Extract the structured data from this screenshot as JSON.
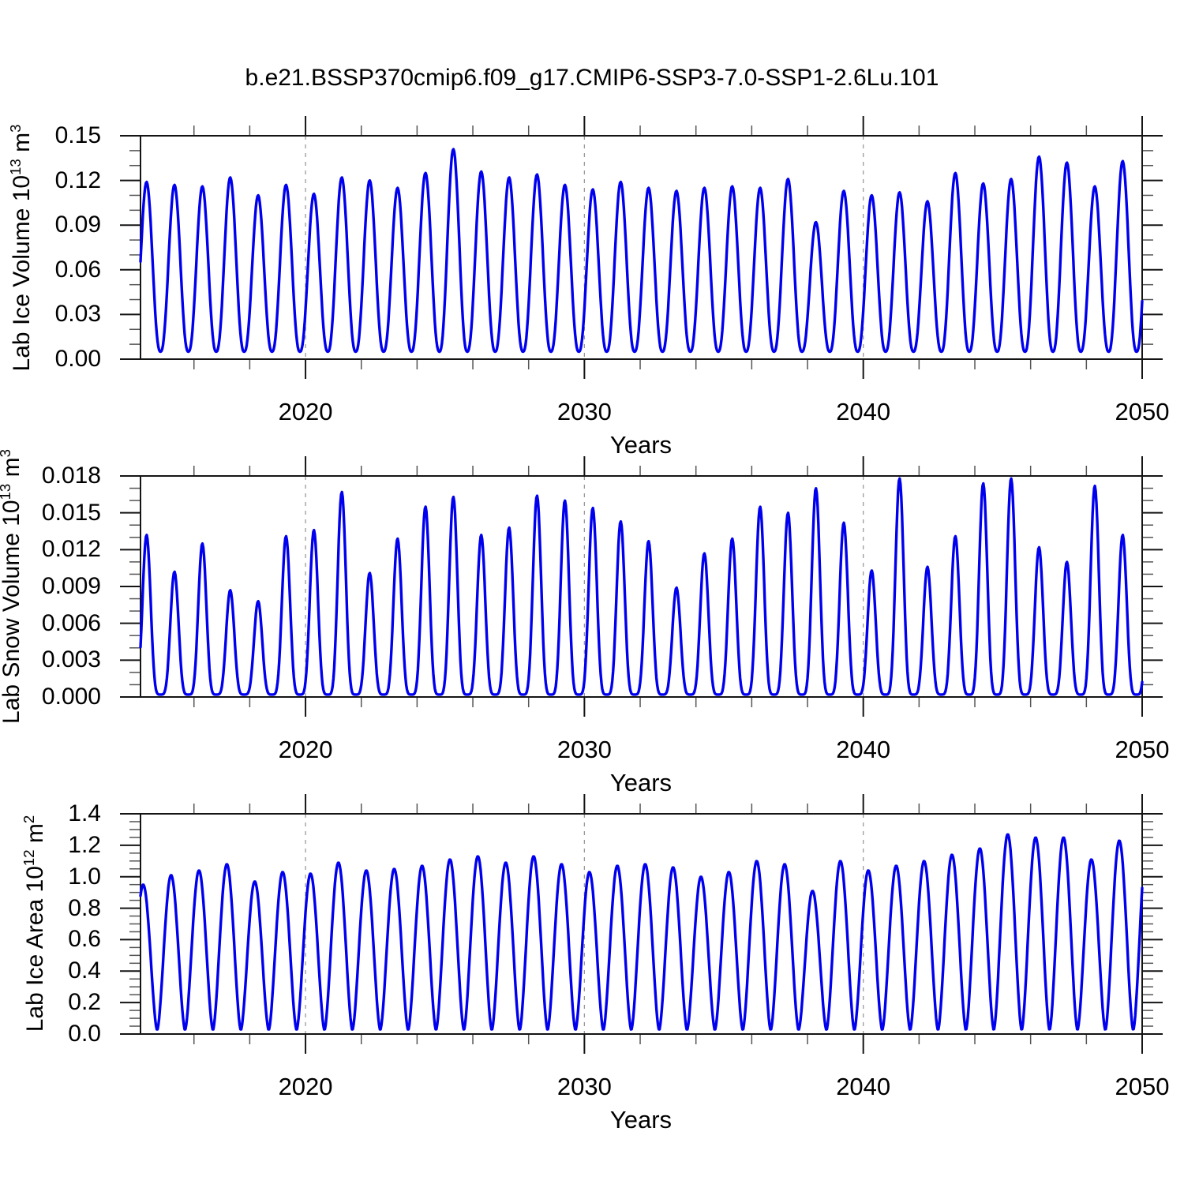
{
  "title": "b.e21.BSSP370cmip6.f09_g17.CMIP6-SSP3-7.0-SSP1-2.6Lu.101",
  "style": {
    "line_color": "#0000ee",
    "grid_color": "#9a9a9a",
    "frame_color": "#141414",
    "minor_tick_color": "#555555"
  },
  "chart_data": [
    {
      "type": "line",
      "id": "lab-ice-volume",
      "ylabel": {
        "base": "Lab Ice Volume 10",
        "exponent": "13",
        "unit": " m",
        "unit_exponent": "3"
      },
      "xlabel": "Years",
      "xlim": [
        2014.083,
        2050
      ],
      "ylim": [
        0,
        0.15
      ],
      "xticks": [
        2020,
        2030,
        2040,
        2050
      ],
      "xtick_labels": [
        "2020",
        "2030",
        "2040",
        "2050"
      ],
      "x_minor_interval": 2,
      "ytick_values": [
        0,
        0.03,
        0.06,
        0.09,
        0.12,
        0.15
      ],
      "ytick_labels": [
        "0.00",
        "0.03",
        "0.06",
        "0.09",
        "0.12",
        "0.15"
      ],
      "y_minor_interval": 0.01,
      "dashed_gridlines_x": [
        2020,
        2030,
        2040
      ],
      "grid": "vertical-dashed-at-decades",
      "legend": "none",
      "series": {
        "name": "Lab Ice Volume",
        "units": "10^13 m^3",
        "color": "#0000ee",
        "cycle": "annual seasonal cycle, winter maximum, late-summer minimum near zero",
        "start_year": 2014,
        "years": [
          2014,
          2015,
          2016,
          2017,
          2018,
          2019,
          2020,
          2021,
          2022,
          2023,
          2024,
          2025,
          2026,
          2027,
          2028,
          2029,
          2030,
          2031,
          2032,
          2033,
          2034,
          2035,
          2036,
          2037,
          2038,
          2039,
          2040,
          2041,
          2042,
          2043,
          2044,
          2045,
          2046,
          2047,
          2048,
          2049
        ],
        "annual_peak": [
          0.119,
          0.117,
          0.116,
          0.122,
          0.11,
          0.117,
          0.111,
          0.122,
          0.12,
          0.115,
          0.125,
          0.141,
          0.126,
          0.122,
          0.124,
          0.117,
          0.114,
          0.119,
          0.115,
          0.113,
          0.115,
          0.116,
          0.115,
          0.121,
          0.092,
          0.113,
          0.11,
          0.112,
          0.106,
          0.125,
          0.118,
          0.121,
          0.136,
          0.132,
          0.116,
          0.133
        ],
        "annual_min": 0.005,
        "peak_phase": 0.3,
        "sharpness": 1.25,
        "samples_per_year": 36
      }
    },
    {
      "type": "line",
      "id": "lab-snow-volume",
      "ylabel": {
        "base": "Lab Snow Volume 10",
        "exponent": "13",
        "unit": " m",
        "unit_exponent": "3"
      },
      "xlabel": "Years",
      "xlim": [
        2014.083,
        2050
      ],
      "ylim": [
        0,
        0.018
      ],
      "xticks": [
        2020,
        2030,
        2040,
        2050
      ],
      "xtick_labels": [
        "2020",
        "2030",
        "2040",
        "2050"
      ],
      "x_minor_interval": 2,
      "ytick_values": [
        0,
        0.003,
        0.006,
        0.009,
        0.012,
        0.015,
        0.018
      ],
      "ytick_labels": [
        "0.000",
        "0.003",
        "0.006",
        "0.009",
        "0.012",
        "0.015",
        "0.018"
      ],
      "y_minor_interval": 0.001,
      "dashed_gridlines_x": [
        2020,
        2030,
        2040
      ],
      "grid": "vertical-dashed-at-decades",
      "legend": "none",
      "series": {
        "name": "Lab Snow Volume",
        "units": "10^13 m^3",
        "color": "#0000ee",
        "cycle": "annual seasonal cycle, sharp late-winter peaks, flat near-zero summers",
        "start_year": 2014,
        "years": [
          2014,
          2015,
          2016,
          2017,
          2018,
          2019,
          2020,
          2021,
          2022,
          2023,
          2024,
          2025,
          2026,
          2027,
          2028,
          2029,
          2030,
          2031,
          2032,
          2033,
          2034,
          2035,
          2036,
          2037,
          2038,
          2039,
          2040,
          2041,
          2042,
          2043,
          2044,
          2045,
          2046,
          2047,
          2048,
          2049
        ],
        "annual_peak": [
          0.0132,
          0.0102,
          0.0125,
          0.0087,
          0.0078,
          0.0131,
          0.0136,
          0.0167,
          0.0101,
          0.0129,
          0.0155,
          0.0163,
          0.0132,
          0.0138,
          0.0164,
          0.016,
          0.0154,
          0.0143,
          0.0127,
          0.0089,
          0.0117,
          0.0129,
          0.0155,
          0.015,
          0.017,
          0.0142,
          0.0103,
          0.0178,
          0.0106,
          0.0131,
          0.0174,
          0.0178,
          0.0122,
          0.011,
          0.0172,
          0.0132
        ],
        "annual_min": 0.0002,
        "peak_phase": 0.3,
        "sharpness": 2.4,
        "samples_per_year": 36
      }
    },
    {
      "type": "line",
      "id": "lab-ice-area",
      "ylabel": {
        "base": "Lab Ice Area 10",
        "exponent": "12",
        "unit": " m",
        "unit_exponent": "2"
      },
      "xlabel": "Years",
      "xlim": [
        2014.083,
        2050
      ],
      "ylim": [
        0,
        1.4
      ],
      "xticks": [
        2020,
        2030,
        2040,
        2050
      ],
      "xtick_labels": [
        "2020",
        "2030",
        "2040",
        "2050"
      ],
      "x_minor_interval": 2,
      "ytick_values": [
        0,
        0.2,
        0.4,
        0.6,
        0.8,
        1.0,
        1.2,
        1.4
      ],
      "ytick_labels": [
        "0.0",
        "0.2",
        "0.4",
        "0.6",
        "0.8",
        "1.0",
        "1.2",
        "1.4"
      ],
      "y_minor_interval": 0.05,
      "dashed_gridlines_x": [
        2020,
        2030,
        2040
      ],
      "grid": "vertical-dashed-at-decades",
      "legend": "none",
      "series": {
        "name": "Lab Ice Area",
        "units": "10^12 m^2",
        "color": "#0000ee",
        "cycle": "annual seasonal cycle, broad winter maxima, narrow late-summer minima near zero",
        "start_year": 2014,
        "years": [
          2014,
          2015,
          2016,
          2017,
          2018,
          2019,
          2020,
          2021,
          2022,
          2023,
          2024,
          2025,
          2026,
          2027,
          2028,
          2029,
          2030,
          2031,
          2032,
          2033,
          2034,
          2035,
          2036,
          2037,
          2038,
          2039,
          2040,
          2041,
          2042,
          2043,
          2044,
          2045,
          2046,
          2047,
          2048,
          2049
        ],
        "annual_peak": [
          0.95,
          1.01,
          1.04,
          1.08,
          0.97,
          1.03,
          1.02,
          1.09,
          1.04,
          1.05,
          1.07,
          1.11,
          1.13,
          1.09,
          1.13,
          1.08,
          1.03,
          1.07,
          1.08,
          1.06,
          1.0,
          1.03,
          1.1,
          1.08,
          0.91,
          1.1,
          1.04,
          1.07,
          1.1,
          1.14,
          1.18,
          1.27,
          1.25,
          1.25,
          1.11,
          1.23
        ],
        "annual_min": 0.025,
        "peak_phase": 0.18,
        "sharpness": 0.85,
        "samples_per_year": 36
      }
    }
  ]
}
